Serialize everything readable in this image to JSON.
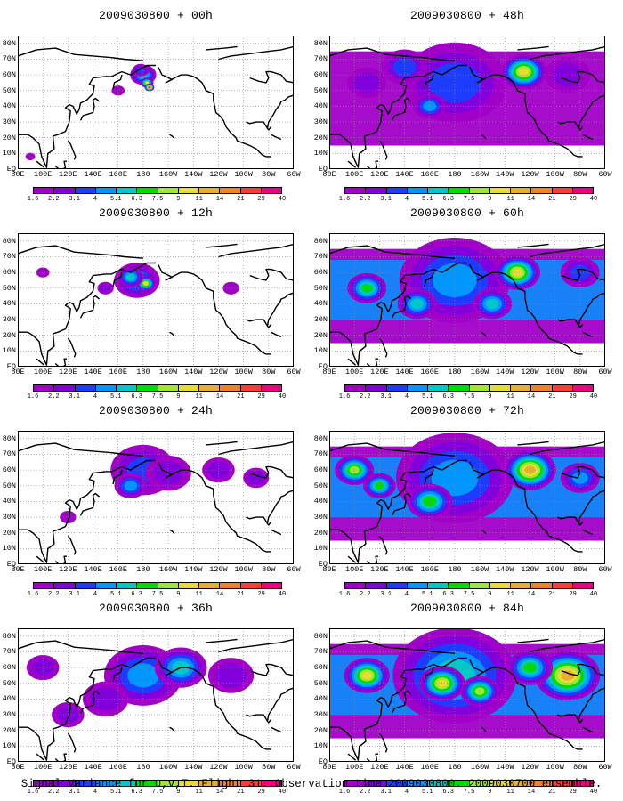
{
  "panels": [
    {
      "title": "2009030800 + 00h",
      "col": 0,
      "row": 0,
      "intensity": 0.08
    },
    {
      "title": "2009030800 + 12h",
      "col": 0,
      "row": 1,
      "intensity": 0.18
    },
    {
      "title": "2009030800 + 24h",
      "col": 0,
      "row": 2,
      "intensity": 0.3
    },
    {
      "title": "2009030800 + 36h",
      "col": 0,
      "row": 3,
      "intensity": 0.42
    },
    {
      "title": "2009030800 + 48h",
      "col": 1,
      "row": 0,
      "intensity": 0.55
    },
    {
      "title": "2009030800 + 60h",
      "col": 1,
      "row": 1,
      "intensity": 0.66
    },
    {
      "title": "2009030800 + 72h",
      "col": 1,
      "row": 2,
      "intensity": 0.78
    },
    {
      "title": "2009030800 + 84h",
      "col": 1,
      "row": 3,
      "intensity": 0.9
    }
  ],
  "y_axis_labels": [
    "80N",
    "70N",
    "60N",
    "50N",
    "40N",
    "30N",
    "20N",
    "10N",
    "EQ"
  ],
  "x_axis_labels": [
    "80E",
    "100E",
    "120E",
    "140E",
    "160E",
    "180",
    "160W",
    "140W",
    "120W",
    "100W",
    "80W",
    "60W"
  ],
  "colorbar": {
    "labels": [
      "1.6",
      "2.2",
      "3.1",
      "4",
      "5.1",
      "6.3",
      "7.5",
      "9",
      "11",
      "14",
      "21",
      "29",
      "40"
    ],
    "colors": [
      "#a000c8",
      "#8200dc",
      "#1e3cff",
      "#0096ff",
      "#00c8c8",
      "#00dc00",
      "#a0e632",
      "#e6dc32",
      "#e6af2d",
      "#f08228",
      "#fa3c3c",
      "#f00082"
    ]
  },
  "caption": "Signal Variance for u,v,T. Flight 31. Observation time 2009030800. 2009030700 ensemble."
}
